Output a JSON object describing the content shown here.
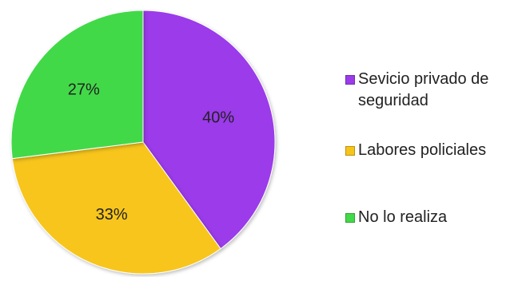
{
  "chart_data": {
    "type": "pie",
    "title": "",
    "categories": [
      "Sevicio privado de seguridad",
      "Labores policiales",
      "No lo realiza"
    ],
    "values": [
      40,
      33,
      27
    ],
    "labels": [
      "40%",
      "33%",
      "27%"
    ],
    "colors": [
      "#9B3BEA",
      "#F7C51A",
      "#43D94A"
    ],
    "legend_position": "right"
  }
}
